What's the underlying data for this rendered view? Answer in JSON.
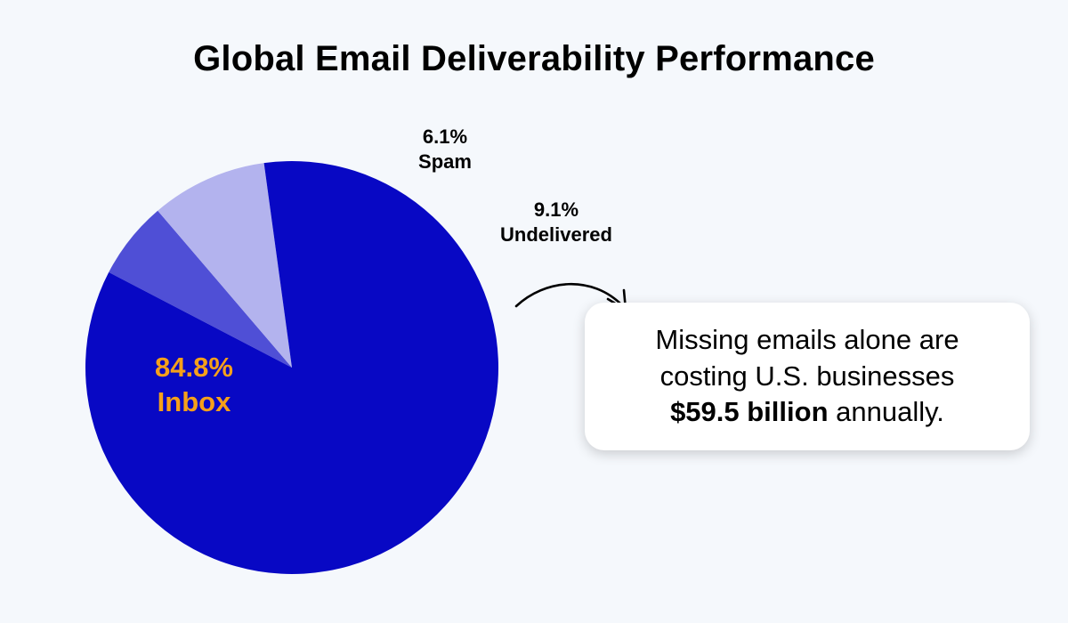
{
  "chart_data": {
    "type": "pie",
    "title": "Global Email Deliverability Performance",
    "slices": [
      {
        "label": "Inbox",
        "value": 84.8,
        "value_text": "84.8%",
        "color": "#0808c4"
      },
      {
        "label": "Spam",
        "value": 6.1,
        "value_text": "6.1%",
        "color": "#4f4fd6"
      },
      {
        "label": "Undelivered",
        "value": 9.1,
        "value_text": "9.1%",
        "color": "#b3b3ee"
      }
    ],
    "legend": "none"
  },
  "callout": {
    "line1": "Missing emails alone are",
    "line2": "costing U.S. businesses",
    "amount": "$59.5 billion",
    "suffix": " annually."
  },
  "colors": {
    "background": "#f5f8fc",
    "inbox_label": "#f5a01a",
    "arrow": "#000000"
  },
  "icons": {
    "arrow": "curved-arrow-icon"
  }
}
